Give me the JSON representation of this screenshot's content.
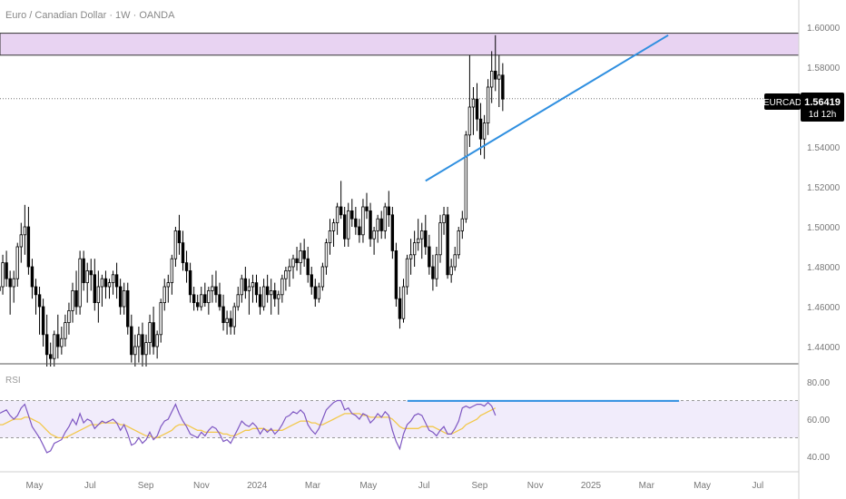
{
  "header": {
    "title": "Euro / Canadian Dollar · 1W · OANDA"
  },
  "price_tag": {
    "symbol": "EURCAD",
    "price": "1.56419",
    "countdown": "1d 12h"
  },
  "rsi_panel": {
    "label": "RSI"
  },
  "colors": {
    "up": "#ffffff",
    "down": "#000000",
    "outline": "#000000",
    "zone": "#e8d3f2",
    "trendline": "#2f8fe0",
    "rsi": "#7e57c2",
    "rsi_ma": "#f2c84b",
    "rsi_band": "#f1ecfb"
  },
  "chart_data": [
    {
      "type": "candlestick",
      "x_ticks": [
        "May",
        "Jul",
        "Sep",
        "Nov",
        "2024",
        "Mar",
        "May",
        "Jul",
        "Sep",
        "Nov",
        "2025",
        "Mar",
        "May",
        "Jul"
      ],
      "y_ticks": [
        "1.60000",
        "1.58000",
        "1.56000",
        "1.54000",
        "1.52000",
        "1.50000",
        "1.48000",
        "1.46000",
        "1.44000"
      ],
      "ylim": [
        1.43,
        1.605
      ],
      "last_price": 1.56419,
      "resistance_zone": [
        1.586,
        1.597
      ],
      "trendline": [
        {
          "index": 116,
          "value": 1.523
        },
        {
          "index": 182,
          "value": 1.596
        }
      ],
      "candles": [
        [
          1.468,
          1.474,
          1.462,
          1.47
        ],
        [
          1.47,
          1.486,
          1.466,
          1.482
        ],
        [
          1.482,
          1.488,
          1.47,
          1.474
        ],
        [
          1.474,
          1.478,
          1.456,
          1.47
        ],
        [
          1.47,
          1.478,
          1.462,
          1.474
        ],
        [
          1.474,
          1.492,
          1.47,
          1.49
        ],
        [
          1.49,
          1.502,
          1.482,
          1.496
        ],
        [
          1.496,
          1.511,
          1.486,
          1.5
        ],
        [
          1.5,
          1.51,
          1.476,
          1.48
        ],
        [
          1.48,
          1.484,
          1.464,
          1.47
        ],
        [
          1.47,
          1.474,
          1.456,
          1.466
        ],
        [
          1.466,
          1.47,
          1.446,
          1.46
        ],
        [
          1.46,
          1.464,
          1.44,
          1.446
        ],
        [
          1.446,
          1.456,
          1.43,
          1.436
        ],
        [
          1.436,
          1.442,
          1.43,
          1.434
        ],
        [
          1.434,
          1.448,
          1.43,
          1.446
        ],
        [
          1.446,
          1.456,
          1.434,
          1.44
        ],
        [
          1.44,
          1.45,
          1.436,
          1.444
        ],
        [
          1.444,
          1.456,
          1.44,
          1.452
        ],
        [
          1.452,
          1.462,
          1.446,
          1.458
        ],
        [
          1.458,
          1.472,
          1.452,
          1.468
        ],
        [
          1.468,
          1.478,
          1.456,
          1.46
        ],
        [
          1.46,
          1.488,
          1.456,
          1.484
        ],
        [
          1.484,
          1.488,
          1.468,
          1.472
        ],
        [
          1.472,
          1.482,
          1.462,
          1.478
        ],
        [
          1.478,
          1.484,
          1.468,
          1.476
        ],
        [
          1.476,
          1.484,
          1.458,
          1.462
        ],
        [
          1.462,
          1.478,
          1.452,
          1.47
        ],
        [
          1.47,
          1.476,
          1.46,
          1.474
        ],
        [
          1.474,
          1.478,
          1.464,
          1.47
        ],
        [
          1.47,
          1.474,
          1.464,
          1.472
        ],
        [
          1.472,
          1.478,
          1.466,
          1.476
        ],
        [
          1.476,
          1.482,
          1.464,
          1.47
        ],
        [
          1.47,
          1.474,
          1.456,
          1.46
        ],
        [
          1.46,
          1.472,
          1.456,
          1.468
        ],
        [
          1.468,
          1.472,
          1.446,
          1.45
        ],
        [
          1.45,
          1.456,
          1.432,
          1.436
        ],
        [
          1.436,
          1.446,
          1.43,
          1.44
        ],
        [
          1.44,
          1.45,
          1.432,
          1.446
        ],
        [
          1.446,
          1.452,
          1.43,
          1.436
        ],
        [
          1.436,
          1.446,
          1.43,
          1.442
        ],
        [
          1.442,
          1.456,
          1.436,
          1.452
        ],
        [
          1.452,
          1.46,
          1.436,
          1.44
        ],
        [
          1.44,
          1.448,
          1.434,
          1.446
        ],
        [
          1.446,
          1.464,
          1.442,
          1.462
        ],
        [
          1.462,
          1.474,
          1.458,
          1.47
        ],
        [
          1.47,
          1.476,
          1.462,
          1.472
        ],
        [
          1.472,
          1.486,
          1.466,
          1.484
        ],
        [
          1.484,
          1.5,
          1.48,
          1.498
        ],
        [
          1.498,
          1.506,
          1.486,
          1.492
        ],
        [
          1.492,
          1.498,
          1.478,
          1.482
        ],
        [
          1.482,
          1.488,
          1.472,
          1.478
        ],
        [
          1.478,
          1.482,
          1.462,
          1.466
        ],
        [
          1.466,
          1.47,
          1.458,
          1.462
        ],
        [
          1.462,
          1.466,
          1.458,
          1.46
        ],
        [
          1.46,
          1.47,
          1.458,
          1.466
        ],
        [
          1.466,
          1.472,
          1.46,
          1.462
        ],
        [
          1.462,
          1.47,
          1.456,
          1.468
        ],
        [
          1.468,
          1.476,
          1.462,
          1.47
        ],
        [
          1.47,
          1.478,
          1.462,
          1.466
        ],
        [
          1.466,
          1.472,
          1.458,
          1.46
        ],
        [
          1.46,
          1.466,
          1.448,
          1.452
        ],
        [
          1.452,
          1.458,
          1.446,
          1.454
        ],
        [
          1.454,
          1.458,
          1.446,
          1.45
        ],
        [
          1.45,
          1.462,
          1.446,
          1.46
        ],
        [
          1.46,
          1.47,
          1.458,
          1.466
        ],
        [
          1.466,
          1.476,
          1.462,
          1.474
        ],
        [
          1.474,
          1.48,
          1.464,
          1.468
        ],
        [
          1.468,
          1.474,
          1.456,
          1.47
        ],
        [
          1.47,
          1.476,
          1.462,
          1.472
        ],
        [
          1.472,
          1.476,
          1.462,
          1.466
        ],
        [
          1.466,
          1.47,
          1.456,
          1.46
        ],
        [
          1.46,
          1.474,
          1.458,
          1.47
        ],
        [
          1.47,
          1.476,
          1.462,
          1.466
        ],
        [
          1.466,
          1.474,
          1.456,
          1.468
        ],
        [
          1.468,
          1.472,
          1.46,
          1.464
        ],
        [
          1.464,
          1.468,
          1.456,
          1.466
        ],
        [
          1.466,
          1.476,
          1.462,
          1.474
        ],
        [
          1.474,
          1.48,
          1.468,
          1.478
        ],
        [
          1.478,
          1.484,
          1.47,
          1.48
        ],
        [
          1.48,
          1.486,
          1.474,
          1.484
        ],
        [
          1.484,
          1.49,
          1.478,
          1.482
        ],
        [
          1.482,
          1.492,
          1.476,
          1.488
        ],
        [
          1.488,
          1.494,
          1.48,
          1.484
        ],
        [
          1.484,
          1.49,
          1.472,
          1.476
        ],
        [
          1.476,
          1.48,
          1.466,
          1.47
        ],
        [
          1.47,
          1.474,
          1.46,
          1.464
        ],
        [
          1.464,
          1.472,
          1.462,
          1.47
        ],
        [
          1.47,
          1.482,
          1.468,
          1.48
        ],
        [
          1.48,
          1.494,
          1.476,
          1.492
        ],
        [
          1.492,
          1.504,
          1.486,
          1.498
        ],
        [
          1.498,
          1.504,
          1.49,
          1.502
        ],
        [
          1.502,
          1.512,
          1.496,
          1.51
        ],
        [
          1.51,
          1.523,
          1.504,
          1.506
        ],
        [
          1.506,
          1.51,
          1.49,
          1.494
        ],
        [
          1.494,
          1.512,
          1.49,
          1.508
        ],
        [
          1.508,
          1.514,
          1.5,
          1.504
        ],
        [
          1.504,
          1.51,
          1.496,
          1.5
        ],
        [
          1.5,
          1.504,
          1.492,
          1.496
        ],
        [
          1.496,
          1.514,
          1.492,
          1.51
        ],
        [
          1.51,
          1.517,
          1.504,
          1.508
        ],
        [
          1.508,
          1.512,
          1.49,
          1.494
        ],
        [
          1.494,
          1.5,
          1.486,
          1.498
        ],
        [
          1.498,
          1.506,
          1.492,
          1.504
        ],
        [
          1.504,
          1.508,
          1.494,
          1.498
        ],
        [
          1.498,
          1.512,
          1.494,
          1.51
        ],
        [
          1.51,
          1.518,
          1.5,
          1.506
        ],
        [
          1.506,
          1.51,
          1.484,
          1.488
        ],
        [
          1.488,
          1.492,
          1.46,
          1.464
        ],
        [
          1.464,
          1.47,
          1.449,
          1.454
        ],
        [
          1.454,
          1.474,
          1.452,
          1.47
        ],
        [
          1.47,
          1.486,
          1.466,
          1.484
        ],
        [
          1.484,
          1.494,
          1.476,
          1.486
        ],
        [
          1.486,
          1.498,
          1.48,
          1.492
        ],
        [
          1.492,
          1.504,
          1.488,
          1.494
        ],
        [
          1.494,
          1.502,
          1.484,
          1.498
        ],
        [
          1.498,
          1.506,
          1.486,
          1.49
        ],
        [
          1.49,
          1.496,
          1.476,
          1.48
        ],
        [
          1.48,
          1.486,
          1.468,
          1.474
        ],
        [
          1.474,
          1.49,
          1.47,
          1.486
        ],
        [
          1.486,
          1.506,
          1.482,
          1.502
        ],
        [
          1.502,
          1.51,
          1.496,
          1.506
        ],
        [
          1.506,
          1.51,
          1.474,
          1.476
        ],
        [
          1.476,
          1.484,
          1.472,
          1.48
        ],
        [
          1.48,
          1.49,
          1.478,
          1.486
        ],
        [
          1.486,
          1.5,
          1.484,
          1.498
        ],
        [
          1.498,
          1.508,
          1.494,
          1.504
        ],
        [
          1.504,
          1.548,
          1.502,
          1.546
        ],
        [
          1.546,
          1.586,
          1.54,
          1.56
        ],
        [
          1.56,
          1.57,
          1.546,
          1.564
        ],
        [
          1.564,
          1.572,
          1.548,
          1.554
        ],
        [
          1.554,
          1.562,
          1.536,
          1.544
        ],
        [
          1.544,
          1.556,
          1.534,
          1.552
        ],
        [
          1.552,
          1.574,
          1.546,
          1.57
        ],
        [
          1.57,
          1.588,
          1.562,
          1.578
        ],
        [
          1.578,
          1.596,
          1.568,
          1.574
        ],
        [
          1.574,
          1.586,
          1.56,
          1.576
        ],
        [
          1.576,
          1.582,
          1.558,
          1.564
        ]
      ]
    },
    {
      "type": "line",
      "title": "RSI",
      "y_ticks": [
        "80.00",
        "60.00",
        "40.00"
      ],
      "ylim": [
        32,
        82
      ],
      "bands": [
        70,
        50
      ],
      "series": [
        {
          "values": [
            63,
            64,
            65,
            62,
            60,
            62,
            66,
            68,
            62,
            56,
            53,
            50,
            46,
            42,
            43,
            47,
            48,
            49,
            53,
            56,
            60,
            57,
            63,
            58,
            60,
            59,
            55,
            57,
            59,
            58,
            59,
            60,
            58,
            54,
            57,
            52,
            46,
            47,
            50,
            47,
            49,
            53,
            49,
            51,
            56,
            59,
            60,
            64,
            68,
            63,
            59,
            56,
            52,
            51,
            50,
            53,
            51,
            54,
            56,
            55,
            52,
            48,
            49,
            47,
            51,
            55,
            59,
            57,
            56,
            58,
            56,
            52,
            55,
            53,
            55,
            52,
            54,
            57,
            61,
            62,
            64,
            63,
            65,
            63,
            57,
            54,
            52,
            55,
            60,
            65,
            67,
            69,
            70,
            70,
            65,
            66,
            63,
            62,
            60,
            63,
            62,
            58,
            60,
            63,
            61,
            64,
            62,
            54,
            48,
            44,
            52,
            57,
            59,
            62,
            63,
            62,
            58,
            54,
            53,
            51,
            54,
            56,
            52,
            52,
            55,
            59,
            66,
            67,
            66,
            67,
            68,
            68,
            67,
            69,
            67,
            62
          ]
        },
        {
          "values": [
            57,
            57,
            58,
            59,
            60,
            60,
            60,
            61,
            61,
            60,
            59,
            58,
            56,
            54,
            52,
            51,
            50,
            50,
            50,
            51,
            52,
            53,
            54,
            55,
            56,
            57,
            57,
            57,
            58,
            58,
            58,
            58,
            58,
            57,
            57,
            56,
            55,
            54,
            53,
            52,
            51,
            51,
            50,
            50,
            51,
            52,
            53,
            54,
            56,
            57,
            57,
            57,
            56,
            55,
            54,
            54,
            53,
            53,
            53,
            53,
            53,
            52,
            52,
            51,
            51,
            52,
            53,
            54,
            54,
            55,
            55,
            55,
            55,
            54,
            54,
            54,
            54,
            54,
            55,
            56,
            57,
            58,
            59,
            59,
            59,
            58,
            58,
            57,
            57,
            58,
            59,
            60,
            61,
            62,
            63,
            63,
            63,
            63,
            63,
            62,
            62,
            61,
            61,
            61,
            61,
            61,
            61,
            60,
            58,
            56,
            55,
            55,
            55,
            55,
            55,
            56,
            56,
            56,
            56,
            55,
            54,
            53,
            52,
            52,
            53,
            54,
            55,
            57,
            58,
            59,
            60,
            62,
            63,
            64,
            65,
            66
          ]
        }
      ]
    }
  ]
}
